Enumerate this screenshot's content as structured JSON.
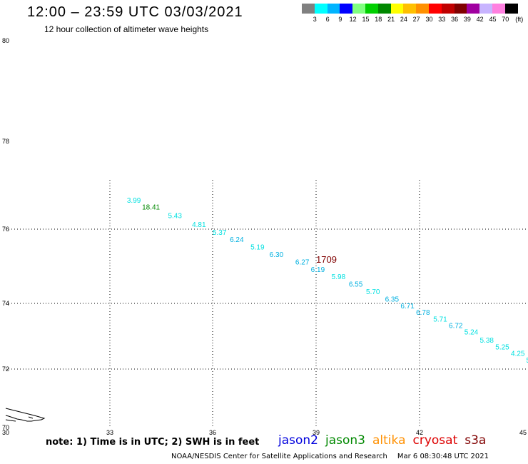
{
  "header": {
    "title": "12:00 – 23:59 UTC 03/03/2021",
    "subtitle": "12 hour collection of altimeter wave heights"
  },
  "colorbar": {
    "unit": "(ft)",
    "colors": [
      "#808080",
      "#00ffff",
      "#00b4ff",
      "#0000ff",
      "#80ff80",
      "#00d000",
      "#008800",
      "#ffff00",
      "#ffc000",
      "#ff9000",
      "#ff0000",
      "#c00000",
      "#800000",
      "#a000a0",
      "#c8b4ff",
      "#ff80e0",
      "#000000"
    ],
    "labels": [
      "3",
      "6",
      "9",
      "12",
      "15",
      "18",
      "21",
      "24",
      "27",
      "30",
      "33",
      "36",
      "39",
      "42",
      "45",
      "70"
    ]
  },
  "map": {
    "x_ticks": [
      "33",
      "36",
      "39",
      "42",
      "45"
    ],
    "y_ticks": [
      "80",
      "78",
      "76",
      "74",
      "72",
      "70"
    ],
    "corner_label": "30",
    "track_color_light": "#00e0e0",
    "track_color_mid": "#00b0e0",
    "observations": [
      {
        "lon": 33.7,
        "lat": 76.6,
        "value": "3.99",
        "color": "#00e0e0"
      },
      {
        "lon": 34.2,
        "lat": 76.45,
        "value": "18.41",
        "color": "#008800"
      },
      {
        "lon": 34.9,
        "lat": 76.25,
        "value": "5.43",
        "color": "#00e0e0"
      },
      {
        "lon": 35.6,
        "lat": 76.05,
        "value": "4.81",
        "color": "#00e0e0"
      },
      {
        "lon": 36.2,
        "lat": 75.85,
        "value": "5.37",
        "color": "#00e0e0"
      },
      {
        "lon": 36.7,
        "lat": 75.65,
        "value": "6.24",
        "color": "#00b0e0"
      },
      {
        "lon": 37.3,
        "lat": 75.45,
        "value": "5.19",
        "color": "#00e0e0"
      },
      {
        "lon": 37.85,
        "lat": 75.25,
        "value": "6.30",
        "color": "#00b0e0"
      },
      {
        "lon": 38.6,
        "lat": 75.05,
        "value": "6.27",
        "color": "#00b0e0"
      },
      {
        "lon": 39.05,
        "lat": 74.85,
        "value": "6.19",
        "color": "#00b0e0"
      },
      {
        "lon": 39.65,
        "lat": 74.65,
        "value": "5.98",
        "color": "#00e0e0"
      },
      {
        "lon": 40.15,
        "lat": 74.45,
        "value": "6.55",
        "color": "#00b0e0"
      },
      {
        "lon": 40.65,
        "lat": 74.25,
        "value": "5.70",
        "color": "#00e0e0"
      },
      {
        "lon": 41.2,
        "lat": 74.05,
        "value": "6.35",
        "color": "#00b0e0"
      },
      {
        "lon": 41.65,
        "lat": 73.85,
        "value": "6.71",
        "color": "#00b0e0"
      },
      {
        "lon": 42.1,
        "lat": 73.65,
        "value": "6.78",
        "color": "#00b0e0"
      },
      {
        "lon": 42.6,
        "lat": 73.45,
        "value": "5.71",
        "color": "#00e0e0"
      },
      {
        "lon": 43.05,
        "lat": 73.25,
        "value": "6.72",
        "color": "#00b0e0"
      },
      {
        "lon": 43.5,
        "lat": 73.05,
        "value": "5.24",
        "color": "#00e0e0"
      },
      {
        "lon": 43.95,
        "lat": 72.8,
        "value": "5.38",
        "color": "#00e0e0"
      },
      {
        "lon": 44.4,
        "lat": 72.6,
        "value": "5.25",
        "color": "#00e0e0"
      },
      {
        "lon": 44.85,
        "lat": 72.4,
        "value": "4.25",
        "color": "#00e0e0"
      },
      {
        "lon": 45.15,
        "lat": 72.2,
        "value": "5",
        "color": "#00e0e0"
      }
    ],
    "time_marker": {
      "lon": 39.3,
      "lat": 75.1,
      "label": "1709",
      "color": "#800000"
    }
  },
  "footer": {
    "note": "note:  1) Time is in UTC;  2) SWH is in feet",
    "satellites": [
      {
        "name": "jason2",
        "color": "#0000dd"
      },
      {
        "name": "jason3",
        "color": "#008800"
      },
      {
        "name": "altika",
        "color": "#ff9000"
      },
      {
        "name": "cryosat",
        "color": "#dd0000"
      },
      {
        "name": "s3a",
        "color": "#800000"
      }
    ],
    "credit": "NOAA/NESDIS Center for Satellite Applications and Research",
    "timestamp": "Mar  6 08:30:48 UTC 2021"
  }
}
